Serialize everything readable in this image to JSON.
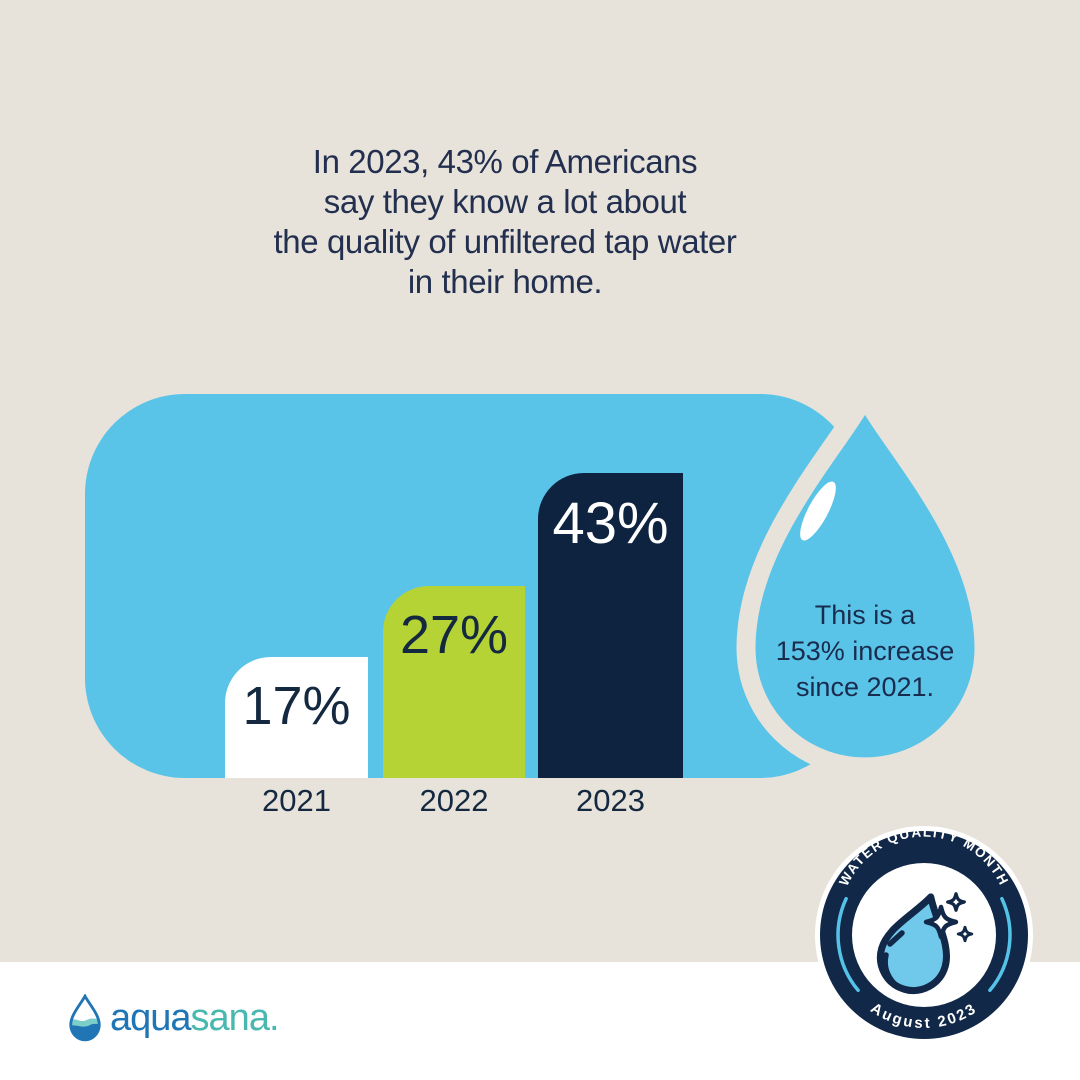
{
  "headline": {
    "lines": [
      "In 2023, 43% of Americans",
      "say they know a lot about",
      "the quality of unfiltered tap water",
      "in their home."
    ]
  },
  "chart_data": {
    "type": "bar",
    "title": "In 2023, 43% of Americans say they know a lot about the quality of unfiltered tap water in their home.",
    "categories": [
      "2021",
      "2022",
      "2023"
    ],
    "values": [
      17,
      27,
      43
    ],
    "value_labels": [
      "17%",
      "27%",
      "43%"
    ],
    "bar_colors": [
      "#FFFFFF",
      "#B6D335",
      "#0E2340"
    ],
    "unit": "percent",
    "ylim": [
      0,
      43
    ],
    "grid": false,
    "legend": "none",
    "annotation": {
      "lines": [
        "This is a",
        "153% increase",
        "since 2021."
      ]
    }
  },
  "badge": {
    "arc_top": "WATER QUALITY MONTH",
    "arc_bottom": "August 2023"
  },
  "logo": {
    "part1": "aqua",
    "part2": "sana",
    "mark": "."
  },
  "colors": {
    "background": "#E7E3DB",
    "panel_blue": "#5AC3E8",
    "navy": "#0E2340",
    "green": "#B6D335",
    "white": "#FFFFFF",
    "headline_text": "#232F4F",
    "badge_navy": "#112848",
    "badge_arc_blue": "#55C2E8",
    "badge_drop_blue": "#70C8EA",
    "logo_blue": "#2076B4",
    "logo_teal": "#49B8AE"
  }
}
